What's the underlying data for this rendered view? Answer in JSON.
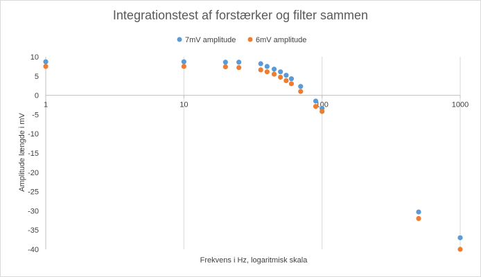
{
  "chart_data": {
    "type": "scatter",
    "title": "Integrationstest af forstærker og filter sammen",
    "xlabel": "Frekvens i Hz, logaritmisk skala",
    "ylabel": "Amplitude længde i mV",
    "x_scale": "log",
    "xlim": [
      1,
      1000
    ],
    "ylim": [
      -40,
      10
    ],
    "x_ticks": [
      1,
      10,
      100,
      1000
    ],
    "x_tick_labels": [
      "1",
      "10",
      "100",
      "1000"
    ],
    "y_ticks": [
      10,
      5,
      0,
      -5,
      -10,
      -15,
      -20,
      -25,
      -30,
      -35,
      -40
    ],
    "y_tick_labels": [
      "10",
      "5",
      "0",
      "-5",
      "-10",
      "-15",
      "-20",
      "-25",
      "-30",
      "-35",
      "-40"
    ],
    "grid": "vertical major gridlines",
    "legend_position": "top",
    "series": [
      {
        "name": "7mV amplitude",
        "color": "#5B9BD5",
        "points": [
          {
            "x": 1,
            "y": 8.7
          },
          {
            "x": 10,
            "y": 8.7
          },
          {
            "x": 20,
            "y": 8.6
          },
          {
            "x": 25,
            "y": 8.6
          },
          {
            "x": 36,
            "y": 8.2
          },
          {
            "x": 40,
            "y": 7.5
          },
          {
            "x": 45,
            "y": 6.8
          },
          {
            "x": 50,
            "y": 6.1
          },
          {
            "x": 55,
            "y": 5.2
          },
          {
            "x": 60,
            "y": 4.3
          },
          {
            "x": 70,
            "y": 2.3
          },
          {
            "x": 90,
            "y": -1.5
          },
          {
            "x": 100,
            "y": -3.4
          },
          {
            "x": 500,
            "y": -30.3
          },
          {
            "x": 1000,
            "y": -37.0
          }
        ]
      },
      {
        "name": "6mV amplitude",
        "color": "#ED7D31",
        "points": [
          {
            "x": 1,
            "y": 7.5
          },
          {
            "x": 10,
            "y": 7.5
          },
          {
            "x": 20,
            "y": 7.4
          },
          {
            "x": 25,
            "y": 7.2
          },
          {
            "x": 36,
            "y": 6.6
          },
          {
            "x": 40,
            "y": 6.1
          },
          {
            "x": 45,
            "y": 5.5
          },
          {
            "x": 50,
            "y": 4.7
          },
          {
            "x": 55,
            "y": 3.8
          },
          {
            "x": 60,
            "y": 3.0
          },
          {
            "x": 70,
            "y": 1.0
          },
          {
            "x": 90,
            "y": -2.9
          },
          {
            "x": 100,
            "y": -4.2
          },
          {
            "x": 500,
            "y": -32.0
          },
          {
            "x": 1000,
            "y": -40.0
          }
        ]
      }
    ]
  }
}
